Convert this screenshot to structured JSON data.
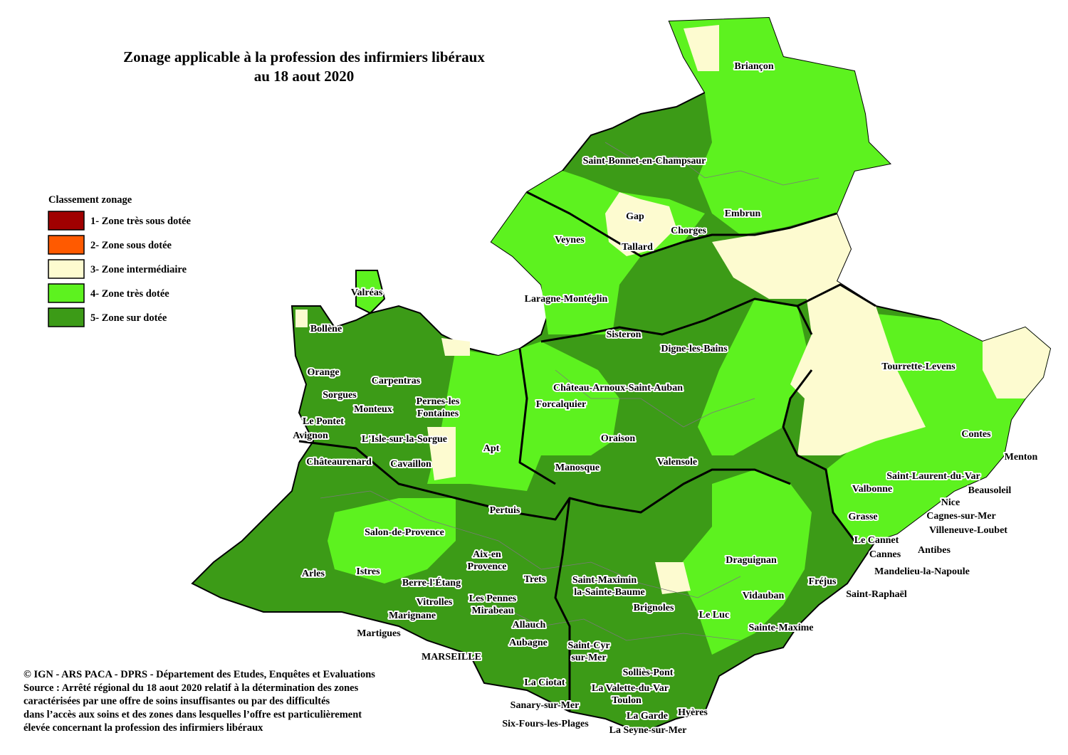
{
  "title": [
    "Zonage applicable à la profession des infirmiers libéraux",
    "au 18 aout 2020"
  ],
  "legend": {
    "title": "Classement zonage",
    "items": [
      {
        "label": "1- Zone très sous dotée",
        "color": "#a00000"
      },
      {
        "label": "2- Zone sous dotée",
        "color": "#ff5a00"
      },
      {
        "label": "3- Zone intermédiaire",
        "color": "#fdfbd0"
      },
      {
        "label": "4- Zone très dotée",
        "color": "#5df21f"
      },
      {
        "label": "5- Zone sur dotée",
        "color": "#3c9b17"
      }
    ]
  },
  "places": [
    "Briançon",
    "Saint-Bonnet-en-Champsaur",
    "Embrun",
    "Gap",
    "Chorges",
    "Veynes",
    "Tallard",
    "Valréas",
    "Laragne-Montéglin",
    "Bollène",
    "Sisteron",
    "Digne-les-Bains",
    "Orange",
    "Carpentras",
    "Tourrette-Levens",
    "Château-Arnoux-Saint-Auban",
    "Sorgues",
    "Pernes-les",
    "Fontaines",
    "Monteux",
    "Forcalquier",
    "Le Pontet",
    "Avignon",
    "L'Isle-sur-la-Sorgue",
    "Contes",
    "Oraison",
    "Apt",
    "Menton",
    "Châteaurenard",
    "Cavaillon",
    "Manosque",
    "Valensole",
    "Saint-Laurent-du-Var",
    "Beausoleil",
    "Valbonne",
    "Nice",
    "Pertuis",
    "Grasse",
    "Cagnes-sur-Mer",
    "Salon-de-Provence",
    "Villeneuve-Loubet",
    "Le Cannet",
    "Aix-en",
    "Provence",
    "Cannes",
    "Antibes",
    "Draguignan",
    "Arles",
    "Istres",
    "Mandelieu-la-Napoule",
    "Trets",
    "Saint-Maximin",
    "Berre-l'Étang",
    "Fréjus",
    "la-Sainte-Baume",
    "Saint-Raphaël",
    "Vidauban",
    "Les Pennes",
    "Vitrolles",
    "Brignoles",
    "Le Luc",
    "Mirabeau",
    "Marignane",
    "Allauch",
    "Sainte-Maxime",
    "Martigues",
    "Aubagne",
    "Saint-Cyr",
    "sur-Mer",
    "MARSEILLE",
    "Solliès-Pont",
    "La Ciotat",
    "La Valette-du-Var",
    "Toulon",
    "Sanary-sur-Mer",
    "Hyères",
    "La Garde",
    "Six-Fours-les-Plages",
    "La Seyne-sur-Mer"
  ],
  "source": [
    "© IGN - ARS PACA - DPRS - Département des Etudes, Enquêtes et Evaluations",
    "Source : Arrêté régional du 18 aout 2020 relatif à la détermination des zones",
    "caractérisées par une offre de soins insuffisantes ou par des difficultés",
    "dans l’accès aux soins et des zones dans lesquelles l’offre est particulièrement",
    "élevée concernant la profession des infirmiers libéraux"
  ]
}
